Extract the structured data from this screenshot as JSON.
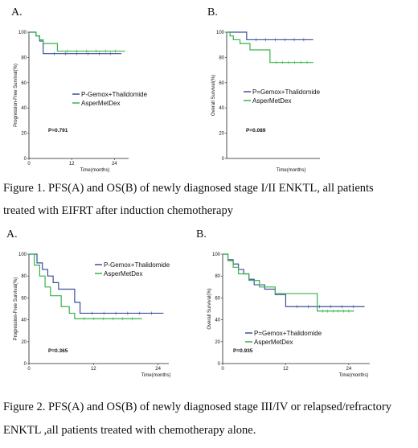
{
  "figure1": {
    "panel_a_label": "A.",
    "panel_b_label": "B.",
    "caption_lines": [
      "Figure 1. PFS(A) and OS(B) of newly diagnosed stage I/II ENKTL, all patients",
      "treated with EIFRT after induction chemotherapy"
    ]
  },
  "figure2": {
    "panel_a_label": "A.",
    "panel_b_label": "B.",
    "caption_lines": [
      "Figure 2. PFS(A) and OS(B) of newly diagnosed stage III/IV or relapsed/refractory",
      "ENKTL ,all patients treated with chemotherapy alone."
    ]
  },
  "colors": {
    "series1": "#3d4f9a",
    "series2": "#37b24d",
    "axis": "#222222"
  },
  "chart_data": [
    {
      "id": "fig1a",
      "type": "line",
      "step": true,
      "xlabel": "Time(months)",
      "ylabel": "Progression-Free Survival(%)",
      "xlim": [
        0,
        28
      ],
      "ylim": [
        0,
        100
      ],
      "xticks": [
        0,
        12,
        24
      ],
      "yticks": [
        0,
        20,
        40,
        60,
        80,
        100
      ],
      "pvalue": "P=0.791",
      "legend_position": "center-right",
      "series": [
        {
          "name": "P-Gemox+Thalidomide",
          "x": [
            0,
            2,
            3,
            4,
            26
          ],
          "y": [
            100,
            97,
            93,
            83,
            83
          ]
        },
        {
          "name": "AsperMetDex",
          "x": [
            0,
            2,
            3,
            4,
            5,
            8,
            27
          ],
          "y": [
            100,
            97,
            94,
            91,
            91,
            85,
            85
          ]
        }
      ]
    },
    {
      "id": "fig1b",
      "type": "line",
      "step": true,
      "xlabel": "Time(months)",
      "ylabel": "Overall Survival(%)",
      "xlim": [
        0,
        28
      ],
      "ylim": [
        0,
        100
      ],
      "xticks": [],
      "yticks": [
        0,
        20,
        40,
        60,
        80,
        100
      ],
      "pvalue": "P=0.089",
      "legend_position": "center-right",
      "series": [
        {
          "name": "P=Gemox+Thalidomide",
          "x": [
            0,
            6,
            26
          ],
          "y": [
            100,
            94,
            94
          ]
        },
        {
          "name": "AsperMetDex",
          "x": [
            0,
            1,
            2,
            4,
            7,
            13,
            26
          ],
          "y": [
            100,
            97,
            94,
            91,
            86,
            76,
            76
          ]
        }
      ]
    },
    {
      "id": "fig2a",
      "type": "line",
      "step": true,
      "xlabel": "Time(months)",
      "ylabel": "Progression-Free Survival(%)",
      "xlim": [
        0,
        26
      ],
      "ylim": [
        0,
        100
      ],
      "xticks": [
        0,
        12,
        24
      ],
      "yticks": [
        0,
        20,
        40,
        60,
        80,
        100
      ],
      "pvalue": "P=0.365",
      "legend_position": "top-right",
      "series": [
        {
          "name": "P-Gemox+Thalidomide",
          "x": [
            0,
            1.5,
            2.5,
            3.5,
            4.5,
            5.5,
            7,
            8.5,
            9.5,
            25
          ],
          "y": [
            100,
            92,
            86,
            80,
            74,
            68,
            68,
            56,
            46,
            46
          ]
        },
        {
          "name": "AsperMetDex",
          "x": [
            0,
            1,
            2,
            3,
            4,
            6,
            7.5,
            8.5,
            21
          ],
          "y": [
            100,
            90,
            80,
            70,
            62,
            52,
            46,
            41,
            41
          ]
        }
      ]
    },
    {
      "id": "fig2b",
      "type": "line",
      "step": true,
      "xlabel": "Time(months)",
      "ylabel": "Overall Survival(%)",
      "xlim": [
        0,
        28
      ],
      "ylim": [
        0,
        100
      ],
      "xticks": [
        0,
        12,
        24
      ],
      "yticks": [
        0,
        20,
        40,
        60,
        80,
        100
      ],
      "pvalue": "P=0.935",
      "legend_position": "bottom-right",
      "series": [
        {
          "name": "P=Gemox+Thalidomide",
          "x": [
            0,
            1,
            2,
            3,
            4,
            5,
            6,
            8,
            10,
            12,
            27
          ],
          "y": [
            100,
            95,
            91,
            86,
            82,
            77,
            72,
            68,
            63,
            52,
            52
          ]
        },
        {
          "name": "AsperMetDex",
          "x": [
            0,
            1,
            2,
            3,
            5,
            7,
            10,
            18,
            25
          ],
          "y": [
            100,
            94,
            88,
            82,
            76,
            70,
            64,
            48,
            48
          ]
        }
      ]
    }
  ]
}
